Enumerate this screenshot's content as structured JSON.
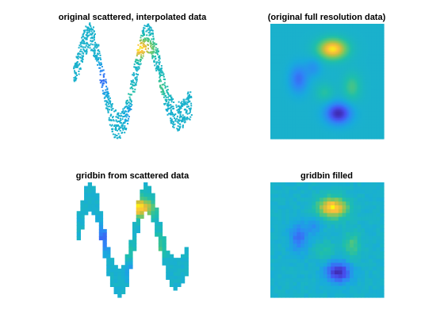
{
  "colors": {
    "colormap": "parula",
    "background": "#ffffff",
    "low": "#3e26a8",
    "mid": "#1fa3dc",
    "high": "#f9fb0e"
  },
  "chart_data": [
    {
      "type": "scatter",
      "title": "original scattered, interpolated data",
      "description_axes": "hidden",
      "x": [
        0.05,
        0.1,
        0.15,
        0.2,
        0.25,
        0.3,
        0.35,
        0.4,
        0.45,
        0.5,
        0.55,
        0.6,
        0.65,
        0.7,
        0.75,
        0.8,
        0.85,
        0.9,
        0.95
      ],
      "band_center": [
        0.62,
        0.82,
        0.9,
        0.8,
        0.55,
        0.3,
        0.15,
        0.12,
        0.22,
        0.45,
        0.72,
        0.88,
        0.85,
        0.68,
        0.45,
        0.28,
        0.2,
        0.22,
        0.3
      ],
      "band_halfwidth": 0.12,
      "grid": false
    },
    {
      "type": "heatmap",
      "title": "(original full resolution data)",
      "grid": false,
      "features": [
        {
          "kind": "peak",
          "x": 0.55,
          "y": 0.75,
          "value": 1.0
        },
        {
          "kind": "trough",
          "x": 0.6,
          "y": 0.22,
          "value": -1.0
        },
        {
          "kind": "trough",
          "x": 0.25,
          "y": 0.52,
          "value": -0.55
        },
        {
          "kind": "peak",
          "x": 0.5,
          "y": 0.45,
          "value": 0.3
        },
        {
          "kind": "peak",
          "x": 0.72,
          "y": 0.45,
          "value": 0.35
        }
      ]
    },
    {
      "type": "heatmap",
      "title": "gridbin from scattered data",
      "grid": false,
      "bins": 32
    },
    {
      "type": "heatmap",
      "title": "gridbin filled",
      "grid": false,
      "bins": 30
    }
  ]
}
